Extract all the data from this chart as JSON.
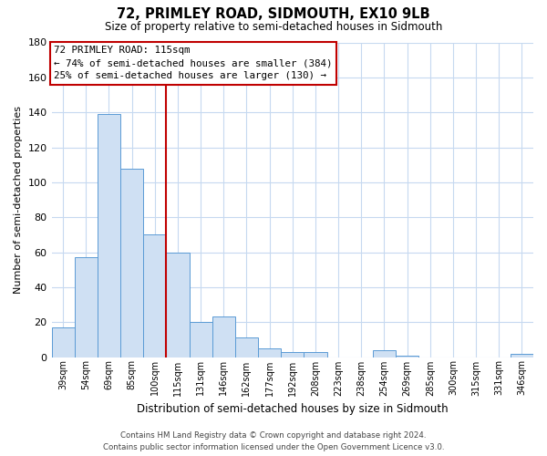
{
  "title": "72, PRIMLEY ROAD, SIDMOUTH, EX10 9LB",
  "subtitle": "Size of property relative to semi-detached houses in Sidmouth",
  "xlabel": "Distribution of semi-detached houses by size in Sidmouth",
  "ylabel": "Number of semi-detached properties",
  "categories": [
    "39sqm",
    "54sqm",
    "69sqm",
    "85sqm",
    "100sqm",
    "115sqm",
    "131sqm",
    "146sqm",
    "162sqm",
    "177sqm",
    "192sqm",
    "208sqm",
    "223sqm",
    "238sqm",
    "254sqm",
    "269sqm",
    "285sqm",
    "300sqm",
    "315sqm",
    "331sqm",
    "346sqm"
  ],
  "values": [
    17,
    57,
    139,
    108,
    70,
    60,
    20,
    23,
    11,
    5,
    3,
    3,
    0,
    0,
    4,
    1,
    0,
    0,
    0,
    0,
    2
  ],
  "bar_color": "#cfe0f3",
  "bar_edge_color": "#5b9bd5",
  "highlight_index": 5,
  "highlight_line_color": "#c00000",
  "ylim": [
    0,
    180
  ],
  "yticks": [
    0,
    20,
    40,
    60,
    80,
    100,
    120,
    140,
    160,
    180
  ],
  "annotation_title": "72 PRIMLEY ROAD: 115sqm",
  "annotation_line1": "← 74% of semi-detached houses are smaller (384)",
  "annotation_line2": "25% of semi-detached houses are larger (130) →",
  "annotation_box_color": "#ffffff",
  "annotation_box_edge": "#c00000",
  "footer1": "Contains HM Land Registry data © Crown copyright and database right 2024.",
  "footer2": "Contains public sector information licensed under the Open Government Licence v3.0.",
  "background_color": "#ffffff",
  "grid_color": "#c6d9f0"
}
